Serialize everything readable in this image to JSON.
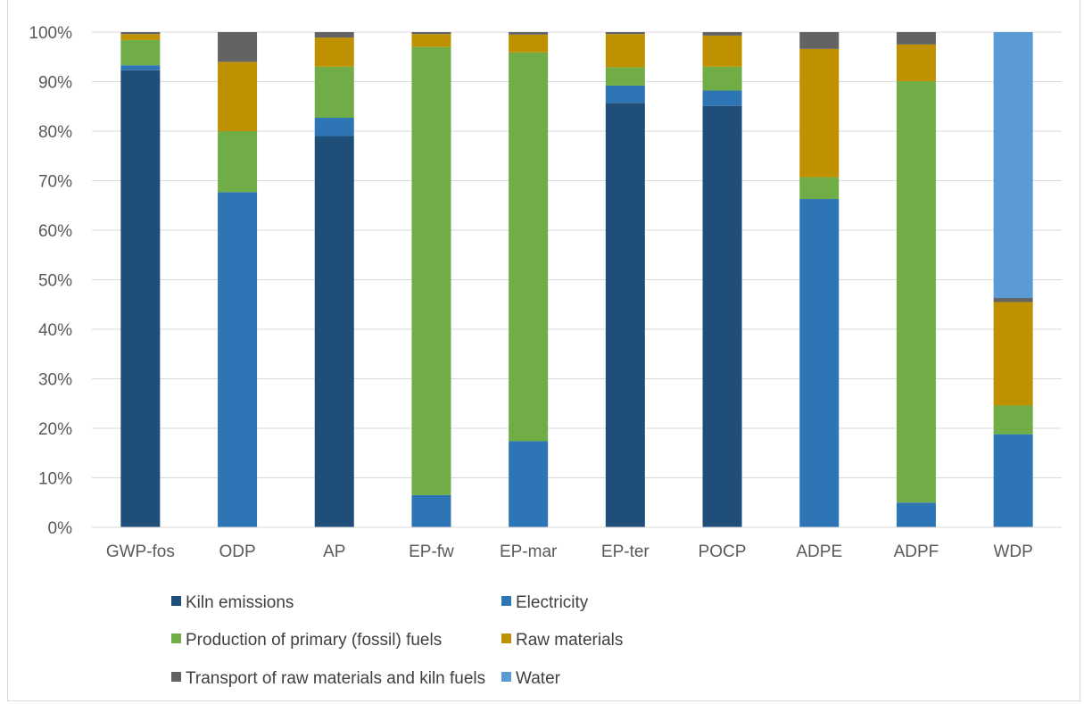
{
  "chart_data": {
    "type": "bar",
    "stacked": true,
    "title": "",
    "xlabel": "",
    "ylabel": "",
    "ylim": [
      0,
      100
    ],
    "y_tick_labels": [
      "0%",
      "10%",
      "20%",
      "30%",
      "40%",
      "50%",
      "60%",
      "70%",
      "80%",
      "90%",
      "100%"
    ],
    "grid": true,
    "legend_position": "bottom",
    "categories": [
      "GWP-fos",
      "ODP",
      "AP",
      "EP-fw",
      "EP-mar",
      "EP-ter",
      "POCP",
      "ADPE",
      "ADPF",
      "WDP"
    ],
    "series": [
      {
        "name": "Kiln emissions",
        "color": "#1f4e79",
        "values": [
          92.3,
          0,
          79.0,
          0,
          0,
          85.7,
          85.1,
          0,
          0,
          0
        ]
      },
      {
        "name": "Electricity",
        "color": "#2e75b6",
        "values": [
          1.0,
          67.7,
          3.7,
          6.5,
          17.4,
          3.5,
          3.1,
          66.3,
          5.0,
          18.8
        ]
      },
      {
        "name": "Production of primary (fossil) fuels",
        "color": "#70ad47",
        "values": [
          5.1,
          12.3,
          10.3,
          90.5,
          78.5,
          3.7,
          4.8,
          4.4,
          85.1,
          5.8
        ]
      },
      {
        "name": "Raw materials",
        "color": "#bf9000",
        "values": [
          1.2,
          14.0,
          5.9,
          2.6,
          3.6,
          6.7,
          6.3,
          25.9,
          7.4,
          20.9
        ]
      },
      {
        "name": "Transport of raw materials and kiln fuels",
        "color": "#636363",
        "values": [
          0.4,
          6.0,
          1.1,
          0.4,
          0.5,
          0.4,
          0.7,
          3.4,
          2.5,
          0.8
        ]
      },
      {
        "name": "Water",
        "color": "#5b9bd5",
        "values": [
          0,
          0,
          0,
          0,
          0,
          0,
          0,
          0,
          0,
          53.7
        ]
      }
    ]
  }
}
